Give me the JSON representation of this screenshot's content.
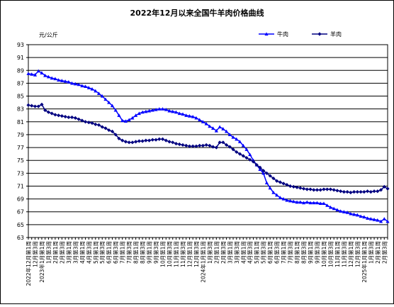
{
  "chart_data": {
    "type": "line",
    "title": "2022年12月以来全国牛羊肉价格曲线",
    "y_label": "元/公斤",
    "categories": [
      "2022年12月第1周",
      null,
      "12月第3周",
      null,
      "2023年1月第1周",
      null,
      "1月第3周",
      null,
      "2月第1周",
      null,
      "2月第3周",
      null,
      "3月第1周",
      null,
      "3月第3周",
      null,
      "4月第1周",
      null,
      "4月第3周",
      null,
      "5月第1周",
      null,
      "5月第3周",
      null,
      "6月第1周",
      null,
      "6月第3周",
      null,
      "7月第1周",
      null,
      "7月第3周",
      null,
      "8月第1周",
      null,
      "8月第3周",
      null,
      "9月第1周",
      null,
      "9月第3周",
      null,
      "10月第1周",
      null,
      "10月第3周",
      null,
      "11月第1周",
      null,
      "11月第3周",
      null,
      "12月第1周",
      null,
      "12月第3周",
      null,
      "2024年1月第1周",
      null,
      "1月第3周",
      null,
      "2月第1周",
      null,
      "2月第3周",
      null,
      "3月第1周",
      null,
      "3月第3周",
      null,
      "4月第1周",
      null,
      "4月第3周",
      null,
      "5月第1周",
      null,
      "5月第3周",
      null,
      "6月第1周",
      null,
      "6月第3周",
      null,
      "7月第1周",
      null,
      "7月第3周",
      null,
      "8月第1周",
      null,
      "8月第3周",
      null,
      "9月第1周",
      null,
      "9月第3周",
      null,
      "10月第1周",
      null,
      "10月第3周",
      null,
      "11月第1周",
      null,
      "11月第3周",
      null,
      "12月第1周",
      null,
      "12月第3周",
      null,
      "2025年1月第1周",
      null,
      "1月第3周",
      null,
      "2月第1周",
      null,
      "2月第3周",
      null
    ],
    "series": [
      {
        "name": "牛肉",
        "color": "#0000ff",
        "marker": "triangle",
        "values": [
          88.5,
          88.4,
          88.3,
          88.9,
          88.6,
          88.2,
          88.0,
          87.8,
          87.7,
          87.5,
          87.4,
          87.3,
          87.2,
          87.0,
          86.9,
          86.8,
          86.6,
          86.5,
          86.3,
          86.1,
          85.8,
          85.4,
          85.0,
          84.5,
          84.0,
          83.5,
          82.8,
          82.0,
          81.2,
          81.1,
          81.3,
          81.6,
          82.0,
          82.3,
          82.5,
          82.6,
          82.7,
          82.8,
          82.9,
          83.0,
          83.0,
          82.9,
          82.7,
          82.6,
          82.5,
          82.3,
          82.2,
          82.0,
          81.9,
          81.8,
          81.6,
          81.3,
          81.0,
          80.7,
          80.3,
          80.0,
          79.6,
          80.2,
          79.9,
          79.5,
          79.0,
          78.6,
          78.3,
          77.9,
          77.3,
          76.7,
          75.9,
          75.0,
          74.3,
          73.6,
          73.0,
          71.5,
          70.7,
          70.0,
          69.6,
          69.2,
          69.0,
          68.8,
          68.7,
          68.6,
          68.5,
          68.5,
          68.4,
          68.5,
          68.4,
          68.4,
          68.4,
          68.3,
          68.3,
          68.0,
          67.7,
          67.5,
          67.3,
          67.1,
          67.0,
          66.9,
          66.7,
          66.6,
          66.5,
          66.3,
          66.2,
          66.0,
          65.9,
          65.8,
          65.7,
          65.5,
          65.9,
          65.5
        ]
      },
      {
        "name": "羊肉",
        "color": "#000080",
        "marker": "diamond",
        "values": [
          83.6,
          83.5,
          83.4,
          83.4,
          83.7,
          82.8,
          82.5,
          82.3,
          82.1,
          82.0,
          81.9,
          81.8,
          81.7,
          81.7,
          81.6,
          81.4,
          81.2,
          81.0,
          80.9,
          80.8,
          80.6,
          80.5,
          80.2,
          80.0,
          79.7,
          79.5,
          79.0,
          78.4,
          78.1,
          77.9,
          77.8,
          77.8,
          77.9,
          78.0,
          78.0,
          78.1,
          78.1,
          78.2,
          78.2,
          78.3,
          78.3,
          78.1,
          77.9,
          77.8,
          77.6,
          77.5,
          77.4,
          77.3,
          77.2,
          77.2,
          77.2,
          77.3,
          77.3,
          77.4,
          77.3,
          77.1,
          77.0,
          77.8,
          77.8,
          77.4,
          77.1,
          76.7,
          76.3,
          76.0,
          75.7,
          75.4,
          75.1,
          74.8,
          74.3,
          73.9,
          73.4,
          73.0,
          72.6,
          72.2,
          71.8,
          71.6,
          71.4,
          71.2,
          71.0,
          70.9,
          70.8,
          70.7,
          70.6,
          70.5,
          70.5,
          70.4,
          70.4,
          70.4,
          70.5,
          70.5,
          70.5,
          70.4,
          70.3,
          70.2,
          70.1,
          70.1,
          70.0,
          70.1,
          70.1,
          70.1,
          70.1,
          70.2,
          70.1,
          70.2,
          70.2,
          70.4,
          70.9,
          70.6
        ]
      }
    ],
    "ylim": [
      63,
      93
    ],
    "yticks": [
      63,
      65,
      67,
      69,
      71,
      73,
      75,
      77,
      79,
      81,
      83,
      85,
      87,
      89,
      91,
      93
    ],
    "grid": true,
    "legend": "top-right"
  }
}
